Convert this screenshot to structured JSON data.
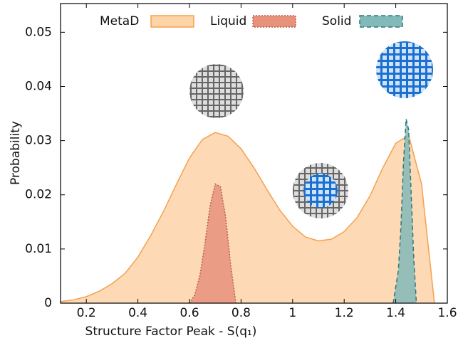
{
  "chart_data": {
    "type": "area",
    "xlabel": "Structure Factor Peak - S(q₁)",
    "ylabel": "Probability",
    "xlim": [
      0.1,
      1.6
    ],
    "ylim": [
      0,
      0.0553
    ],
    "xticks": [
      0.2,
      0.4,
      0.6,
      0.8,
      1,
      1.2,
      1.4,
      1.6
    ],
    "yticks": [
      0,
      0.01,
      0.02,
      0.03,
      0.04,
      0.05
    ],
    "legend": "top",
    "series": [
      {
        "name": "MetaD",
        "color": "#fdd3a8",
        "edge": "#f5a04e",
        "dash": "none",
        "x": [
          0.1,
          0.15,
          0.2,
          0.25,
          0.3,
          0.35,
          0.4,
          0.45,
          0.5,
          0.55,
          0.6,
          0.65,
          0.7,
          0.75,
          0.8,
          0.85,
          0.9,
          0.95,
          1.0,
          1.05,
          1.1,
          1.15,
          1.2,
          1.25,
          1.3,
          1.35,
          1.4,
          1.45,
          1.5,
          1.55
        ],
        "values": [
          0.0003,
          0.0006,
          0.0012,
          0.0022,
          0.0036,
          0.0055,
          0.0085,
          0.0125,
          0.017,
          0.022,
          0.0268,
          0.0302,
          0.0315,
          0.0308,
          0.0285,
          0.025,
          0.021,
          0.0172,
          0.0142,
          0.0122,
          0.0115,
          0.0118,
          0.0132,
          0.0158,
          0.0198,
          0.025,
          0.0295,
          0.031,
          0.022,
          0
        ]
      },
      {
        "name": "Liquid",
        "color": "#e8917b",
        "edge": "#b5604c",
        "dash": "2,2",
        "x": [
          0.6,
          0.62,
          0.64,
          0.66,
          0.68,
          0.7,
          0.72,
          0.74,
          0.76,
          0.78
        ],
        "values": [
          0,
          0.0015,
          0.005,
          0.011,
          0.018,
          0.022,
          0.0215,
          0.016,
          0.007,
          0
        ]
      },
      {
        "name": "Solid",
        "color": "#82b9b9",
        "edge": "#2c7a7a",
        "dash": "6,4",
        "x": [
          1.39,
          1.41,
          1.42,
          1.43,
          1.44,
          1.45,
          1.46,
          1.47,
          1.48
        ],
        "values": [
          0,
          0.006,
          0.014,
          0.026,
          0.034,
          0.032,
          0.02,
          0.008,
          0
        ]
      }
    ]
  }
}
